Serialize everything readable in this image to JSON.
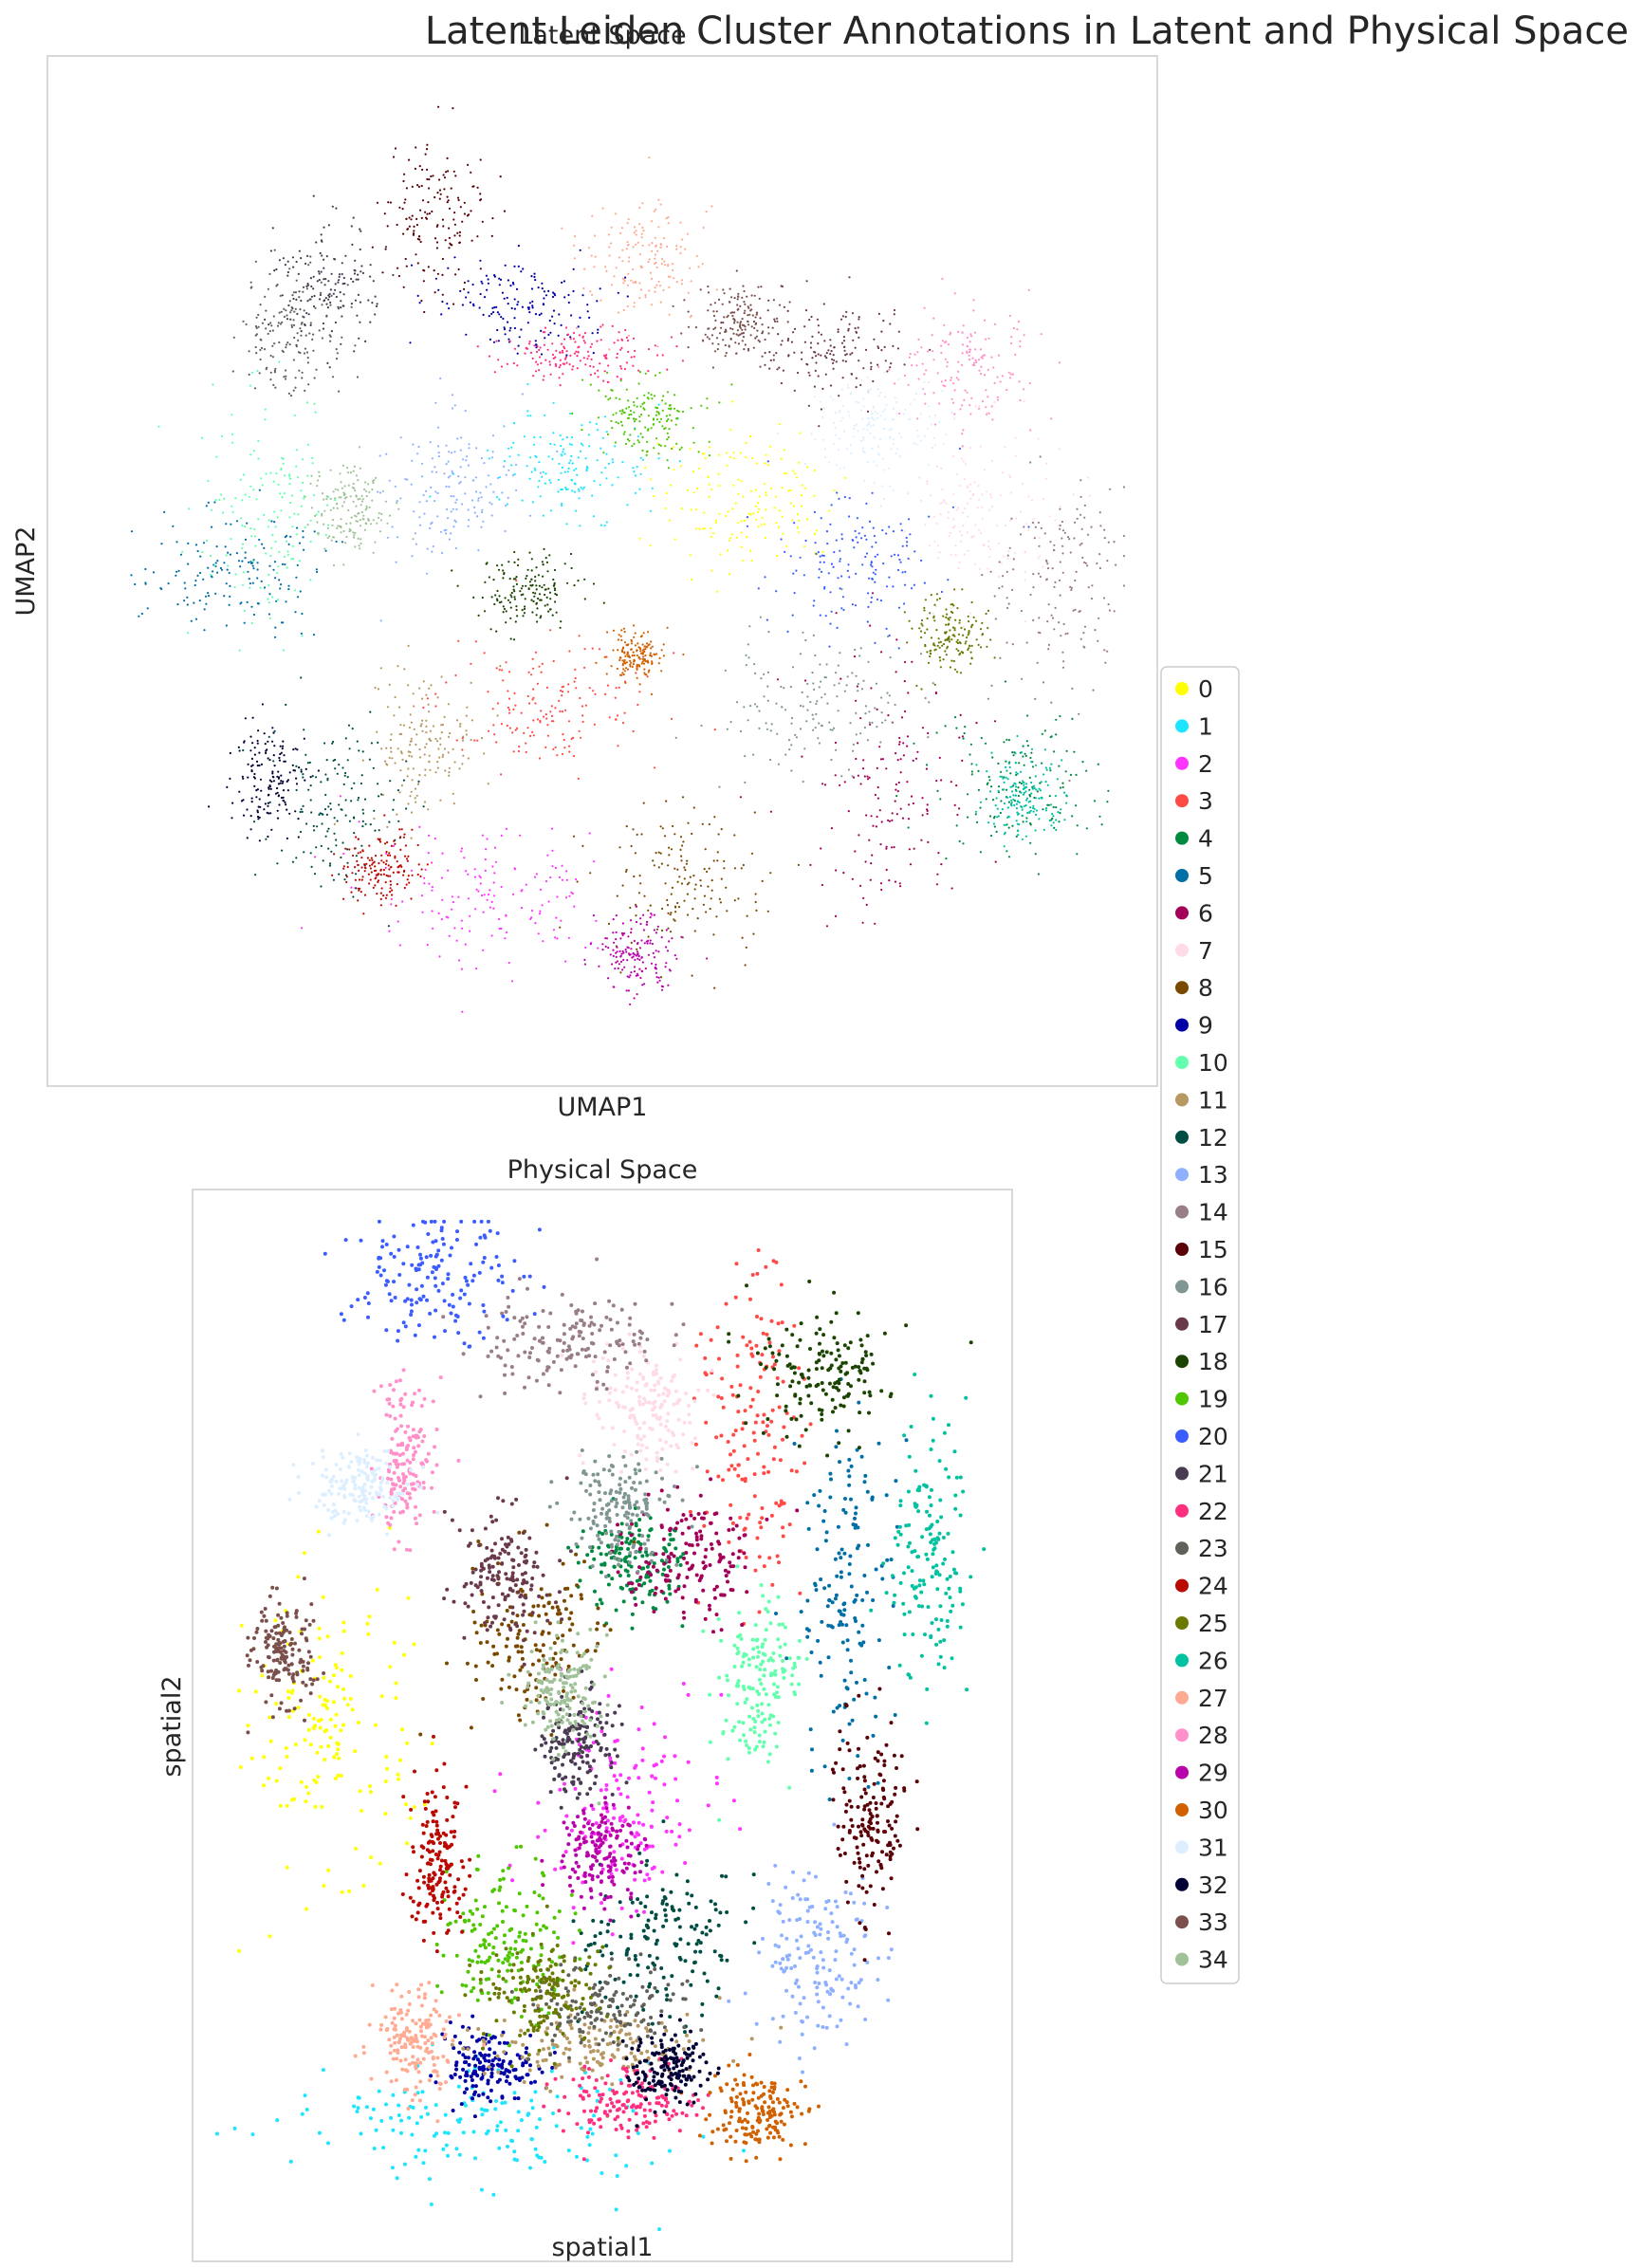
{
  "figure": {
    "suptitle": "Latent Leiden Cluster Annotations in Latent and Physical Space"
  },
  "chart_data": [
    {
      "type": "scatter",
      "title": "Latent Space",
      "xlabel": "UMAP1",
      "ylabel": "UMAP2",
      "xticks": [],
      "yticks": [],
      "grid": false,
      "legend": "shared, right side",
      "clusters": [
        {
          "name": "0",
          "center": [
            0.63,
            0.43
          ],
          "spread": [
            0.07,
            0.06
          ]
        },
        {
          "name": "1",
          "center": [
            0.47,
            0.4
          ],
          "spread": [
            0.06,
            0.04
          ]
        },
        {
          "name": "2",
          "center": [
            0.4,
            0.81
          ],
          "spread": [
            0.1,
            0.06
          ]
        },
        {
          "name": "3",
          "center": [
            0.45,
            0.63
          ],
          "spread": [
            0.08,
            0.05
          ]
        },
        {
          "name": "4",
          "center": [
            0.87,
            0.71
          ],
          "spread": [
            0.06,
            0.06
          ]
        },
        {
          "name": "5",
          "center": [
            0.17,
            0.5
          ],
          "spread": [
            0.07,
            0.05
          ]
        },
        {
          "name": "6",
          "center": [
            0.76,
            0.71
          ],
          "spread": [
            0.06,
            0.1
          ]
        },
        {
          "name": "7",
          "center": [
            0.84,
            0.44
          ],
          "spread": [
            0.06,
            0.07
          ]
        },
        {
          "name": "8",
          "center": [
            0.57,
            0.8
          ],
          "spread": [
            0.06,
            0.06
          ]
        },
        {
          "name": "9",
          "center": [
            0.42,
            0.24
          ],
          "spread": [
            0.06,
            0.04
          ]
        },
        {
          "name": "10",
          "center": [
            0.2,
            0.45
          ],
          "spread": [
            0.05,
            0.1
          ]
        },
        {
          "name": "11",
          "center": [
            0.34,
            0.67
          ],
          "spread": [
            0.04,
            0.06
          ]
        },
        {
          "name": "12",
          "center": [
            0.26,
            0.73
          ],
          "spread": [
            0.05,
            0.07
          ]
        },
        {
          "name": "13",
          "center": [
            0.36,
            0.42
          ],
          "spread": [
            0.05,
            0.06
          ]
        },
        {
          "name": "14",
          "center": [
            0.91,
            0.51
          ],
          "spread": [
            0.05,
            0.09
          ]
        },
        {
          "name": "15",
          "center": [
            0.35,
            0.16
          ],
          "spread": [
            0.04,
            0.06
          ]
        },
        {
          "name": "16",
          "center": [
            0.69,
            0.63
          ],
          "spread": [
            0.07,
            0.06
          ]
        },
        {
          "name": "17",
          "center": [
            0.71,
            0.28
          ],
          "spread": [
            0.06,
            0.04
          ]
        },
        {
          "name": "18",
          "center": [
            0.43,
            0.52
          ],
          "spread": [
            0.04,
            0.03
          ]
        },
        {
          "name": "19",
          "center": [
            0.54,
            0.35
          ],
          "spread": [
            0.04,
            0.03
          ]
        },
        {
          "name": "20",
          "center": [
            0.73,
            0.49
          ],
          "spread": [
            0.06,
            0.06
          ]
        },
        {
          "name": "21",
          "center": [
            0.25,
            0.22
          ],
          "spread": [
            0.04,
            0.05
          ]
        },
        {
          "name": "22",
          "center": [
            0.48,
            0.29
          ],
          "spread": [
            0.06,
            0.02
          ]
        },
        {
          "name": "23",
          "center": [
            0.22,
            0.27
          ],
          "spread": [
            0.04,
            0.05
          ]
        },
        {
          "name": "24",
          "center": [
            0.3,
            0.79
          ],
          "spread": [
            0.03,
            0.03
          ]
        },
        {
          "name": "25",
          "center": [
            0.81,
            0.56
          ],
          "spread": [
            0.03,
            0.03
          ]
        },
        {
          "name": "26",
          "center": [
            0.88,
            0.72
          ],
          "spread": [
            0.03,
            0.03
          ]
        },
        {
          "name": "27",
          "center": [
            0.54,
            0.2
          ],
          "spread": [
            0.05,
            0.05
          ]
        },
        {
          "name": "28",
          "center": [
            0.83,
            0.3
          ],
          "spread": [
            0.05,
            0.05
          ]
        },
        {
          "name": "29",
          "center": [
            0.53,
            0.87
          ],
          "spread": [
            0.03,
            0.03
          ]
        },
        {
          "name": "30",
          "center": [
            0.53,
            0.58
          ],
          "spread": [
            0.02,
            0.02
          ]
        },
        {
          "name": "31",
          "center": [
            0.75,
            0.36
          ],
          "spread": [
            0.05,
            0.04
          ]
        },
        {
          "name": "32",
          "center": [
            0.2,
            0.7
          ],
          "spread": [
            0.03,
            0.04
          ]
        },
        {
          "name": "33",
          "center": [
            0.62,
            0.26
          ],
          "spread": [
            0.03,
            0.03
          ]
        },
        {
          "name": "34",
          "center": [
            0.27,
            0.44
          ],
          "spread": [
            0.03,
            0.04
          ]
        }
      ]
    },
    {
      "type": "scatter",
      "title": "Physical Space",
      "xlabel": "spatial1",
      "ylabel": "spatial2",
      "xticks": [],
      "yticks": [],
      "grid": false,
      "legend": "shared, right side",
      "clusters": [
        {
          "name": "0",
          "center": [
            0.17,
            0.5
          ],
          "spread": [
            0.08,
            0.11
          ]
        },
        {
          "name": "1",
          "center": [
            0.34,
            0.87
          ],
          "spread": [
            0.2,
            0.05
          ]
        },
        {
          "name": "2",
          "center": [
            0.52,
            0.58
          ],
          "spread": [
            0.09,
            0.08
          ]
        },
        {
          "name": "3",
          "center": [
            0.68,
            0.22
          ],
          "spread": [
            0.05,
            0.12
          ]
        },
        {
          "name": "4",
          "center": [
            0.54,
            0.35
          ],
          "spread": [
            0.05,
            0.04
          ]
        },
        {
          "name": "5",
          "center": [
            0.8,
            0.38
          ],
          "spread": [
            0.05,
            0.14
          ]
        },
        {
          "name": "6",
          "center": [
            0.61,
            0.34
          ],
          "spread": [
            0.07,
            0.05
          ]
        },
        {
          "name": "7",
          "center": [
            0.55,
            0.2
          ],
          "spread": [
            0.05,
            0.05
          ]
        },
        {
          "name": "8",
          "center": [
            0.42,
            0.42
          ],
          "spread": [
            0.07,
            0.07
          ]
        },
        {
          "name": "9",
          "center": [
            0.36,
            0.82
          ],
          "spread": [
            0.05,
            0.03
          ]
        },
        {
          "name": "10",
          "center": [
            0.69,
            0.46
          ],
          "spread": [
            0.04,
            0.06
          ]
        },
        {
          "name": "11",
          "center": [
            0.48,
            0.8
          ],
          "spread": [
            0.12,
            0.03
          ]
        },
        {
          "name": "12",
          "center": [
            0.57,
            0.7
          ],
          "spread": [
            0.08,
            0.06
          ]
        },
        {
          "name": "13",
          "center": [
            0.76,
            0.72
          ],
          "spread": [
            0.06,
            0.07
          ]
        },
        {
          "name": "14",
          "center": [
            0.46,
            0.14
          ],
          "spread": [
            0.09,
            0.04
          ]
        },
        {
          "name": "15",
          "center": [
            0.83,
            0.58
          ],
          "spread": [
            0.04,
            0.07
          ]
        },
        {
          "name": "16",
          "center": [
            0.52,
            0.3
          ],
          "spread": [
            0.05,
            0.04
          ]
        },
        {
          "name": "17",
          "center": [
            0.38,
            0.36
          ],
          "spread": [
            0.05,
            0.05
          ]
        },
        {
          "name": "18",
          "center": [
            0.77,
            0.17
          ],
          "spread": [
            0.07,
            0.05
          ]
        },
        {
          "name": "19",
          "center": [
            0.38,
            0.7
          ],
          "spread": [
            0.06,
            0.06
          ]
        },
        {
          "name": "20",
          "center": [
            0.3,
            0.08
          ],
          "spread": [
            0.09,
            0.05
          ]
        },
        {
          "name": "21",
          "center": [
            0.47,
            0.52
          ],
          "spread": [
            0.04,
            0.04
          ]
        },
        {
          "name": "22",
          "center": [
            0.53,
            0.85
          ],
          "spread": [
            0.07,
            0.03
          ]
        },
        {
          "name": "23",
          "center": [
            0.49,
            0.76
          ],
          "spread": [
            0.09,
            0.03
          ]
        },
        {
          "name": "24",
          "center": [
            0.3,
            0.63
          ],
          "spread": [
            0.03,
            0.06
          ]
        },
        {
          "name": "25",
          "center": [
            0.43,
            0.75
          ],
          "spread": [
            0.06,
            0.04
          ]
        },
        {
          "name": "26",
          "center": [
            0.9,
            0.34
          ],
          "spread": [
            0.04,
            0.1
          ]
        },
        {
          "name": "27",
          "center": [
            0.27,
            0.79
          ],
          "spread": [
            0.04,
            0.04
          ]
        },
        {
          "name": "28",
          "center": [
            0.26,
            0.25
          ],
          "spread": [
            0.03,
            0.06
          ]
        },
        {
          "name": "29",
          "center": [
            0.5,
            0.62
          ],
          "spread": [
            0.04,
            0.04
          ]
        },
        {
          "name": "30",
          "center": [
            0.69,
            0.86
          ],
          "spread": [
            0.05,
            0.03
          ]
        },
        {
          "name": "31",
          "center": [
            0.2,
            0.28
          ],
          "spread": [
            0.05,
            0.03
          ]
        },
        {
          "name": "32",
          "center": [
            0.58,
            0.82
          ],
          "spread": [
            0.04,
            0.03
          ]
        },
        {
          "name": "33",
          "center": [
            0.11,
            0.43
          ],
          "spread": [
            0.03,
            0.04
          ]
        },
        {
          "name": "34",
          "center": [
            0.45,
            0.47
          ],
          "spread": [
            0.04,
            0.04
          ]
        }
      ]
    }
  ],
  "legend": {
    "entries": [
      {
        "label": "0",
        "color": "#ffff00"
      },
      {
        "label": "1",
        "color": "#1ce6ff"
      },
      {
        "label": "2",
        "color": "#ff34ff"
      },
      {
        "label": "3",
        "color": "#ff4a46"
      },
      {
        "label": "4",
        "color": "#008941"
      },
      {
        "label": "5",
        "color": "#006fa6"
      },
      {
        "label": "6",
        "color": "#a30059"
      },
      {
        "label": "7",
        "color": "#ffdbe5"
      },
      {
        "label": "8",
        "color": "#7a4900"
      },
      {
        "label": "9",
        "color": "#0000a6"
      },
      {
        "label": "10",
        "color": "#63ffac"
      },
      {
        "label": "11",
        "color": "#b79762"
      },
      {
        "label": "12",
        "color": "#004d43"
      },
      {
        "label": "13",
        "color": "#8fb0ff"
      },
      {
        "label": "14",
        "color": "#997d87"
      },
      {
        "label": "15",
        "color": "#5a0007"
      },
      {
        "label": "16",
        "color": "#809693"
      },
      {
        "label": "17",
        "color": "#6a3a4c"
      },
      {
        "label": "18",
        "color": "#1b4400"
      },
      {
        "label": "19",
        "color": "#4fc601"
      },
      {
        "label": "20",
        "color": "#3b5dff"
      },
      {
        "label": "21",
        "color": "#4a3b53"
      },
      {
        "label": "22",
        "color": "#ff2f80"
      },
      {
        "label": "23",
        "color": "#61615a"
      },
      {
        "label": "24",
        "color": "#ba0900"
      },
      {
        "label": "25",
        "color": "#6b7900"
      },
      {
        "label": "26",
        "color": "#00c2a0"
      },
      {
        "label": "27",
        "color": "#ffaa92"
      },
      {
        "label": "28",
        "color": "#ff90c9"
      },
      {
        "label": "29",
        "color": "#b903aa"
      },
      {
        "label": "30",
        "color": "#d16100"
      },
      {
        "label": "31",
        "color": "#ddefff"
      },
      {
        "label": "32",
        "color": "#000035"
      },
      {
        "label": "33",
        "color": "#7b4f4b"
      },
      {
        "label": "34",
        "color": "#a1c299"
      }
    ]
  }
}
